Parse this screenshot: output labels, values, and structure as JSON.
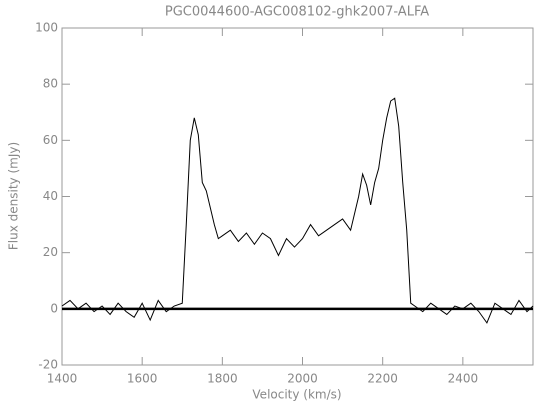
{
  "chart_data": {
    "type": "line",
    "title": "PGC0044600-AGC008102-ghk2007-ALFA",
    "x_label": "Velocity (km/s)",
    "y_label": "Flux density (mJy)",
    "x": [
      1400,
      1420,
      1440,
      1460,
      1480,
      1500,
      1520,
      1540,
      1560,
      1580,
      1600,
      1620,
      1640,
      1660,
      1680,
      1700,
      1710,
      1720,
      1730,
      1740,
      1750,
      1760,
      1770,
      1780,
      1790,
      1800,
      1820,
      1840,
      1860,
      1880,
      1900,
      1920,
      1940,
      1960,
      1980,
      2000,
      2020,
      2040,
      2060,
      2080,
      2100,
      2120,
      2140,
      2150,
      2160,
      2170,
      2180,
      2190,
      2200,
      2210,
      2220,
      2230,
      2240,
      2250,
      2260,
      2270,
      2280,
      2300,
      2320,
      2340,
      2360,
      2380,
      2400,
      2420,
      2440,
      2460,
      2480,
      2500,
      2520,
      2540,
      2560,
      2575
    ],
    "series": [
      {
        "color": "#000000",
        "values": [
          1,
          3,
          0,
          2,
          -1,
          1,
          -2,
          2,
          -1,
          -3,
          2,
          -4,
          3,
          -1,
          1,
          2,
          30,
          60,
          68,
          62,
          45,
          42,
          36,
          30,
          25,
          26,
          28,
          24,
          27,
          23,
          27,
          25,
          19,
          25,
          22,
          25,
          30,
          26,
          28,
          30,
          32,
          28,
          40,
          48,
          44,
          37,
          45,
          50,
          60,
          68,
          74,
          75,
          65,
          45,
          28,
          2,
          1,
          -1,
          2,
          0,
          -2,
          1,
          0,
          2,
          -1,
          -5,
          2,
          0,
          -2,
          3,
          -1,
          1
        ]
      }
    ],
    "xlim": [
      1400,
      2575
    ],
    "ylim": [
      -20,
      100
    ],
    "xticks": [
      1400,
      1600,
      1800,
      2000,
      2200,
      2400
    ],
    "yticks": [
      -20,
      0,
      20,
      40,
      60,
      80,
      100
    ]
  }
}
